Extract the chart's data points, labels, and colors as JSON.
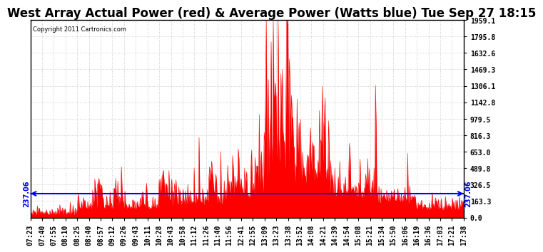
{
  "title": "West Array Actual Power (red) & Average Power (Watts blue) Tue Sep 27 18:15",
  "copyright": "Copyright 2011 Cartronics.com",
  "average_power": 237.06,
  "ymax": 1959.1,
  "yticks": [
    0.0,
    163.3,
    326.5,
    489.8,
    653.0,
    816.3,
    979.5,
    1142.8,
    1306.1,
    1469.3,
    1632.6,
    1795.8,
    1959.1
  ],
  "xtick_labels": [
    "07:23",
    "07:40",
    "07:55",
    "08:10",
    "08:25",
    "08:40",
    "08:57",
    "09:12",
    "09:26",
    "09:43",
    "10:11",
    "10:28",
    "10:43",
    "10:58",
    "11:12",
    "11:26",
    "11:40",
    "11:56",
    "12:41",
    "12:55",
    "13:09",
    "13:23",
    "13:38",
    "13:52",
    "14:08",
    "14:21",
    "14:39",
    "14:54",
    "15:08",
    "15:21",
    "15:34",
    "15:50",
    "16:06",
    "16:19",
    "16:36",
    "17:03",
    "17:21",
    "17:38"
  ],
  "background_color": "#ffffff",
  "grid_color": "#bbbbbb",
  "line_color": "#0000ff",
  "fill_color": "#ff0000",
  "title_fontsize": 12,
  "tick_fontsize": 7,
  "avg_label_fontsize": 7
}
